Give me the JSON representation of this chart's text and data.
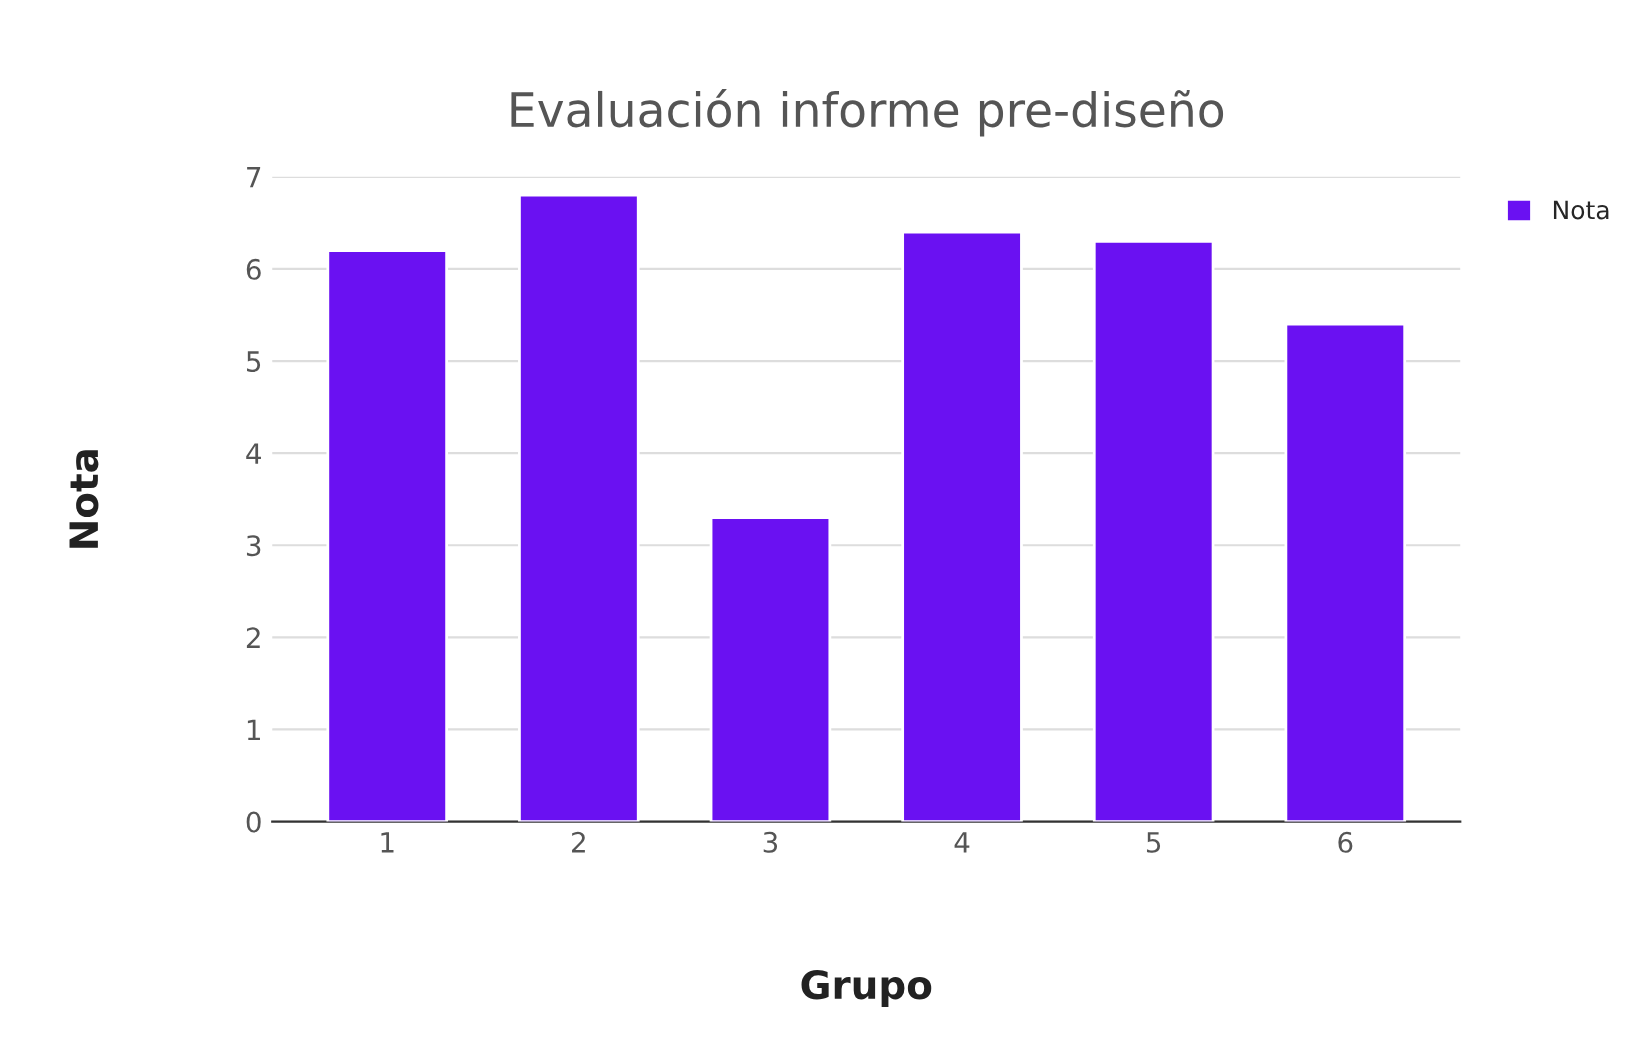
{
  "chart_data": {
    "type": "bar",
    "title": "Evaluación informe pre-diseño",
    "xlabel": "Grupo",
    "ylabel": "Nota",
    "categories": [
      "1",
      "2",
      "3",
      "4",
      "5",
      "6"
    ],
    "series": [
      {
        "name": "Nota",
        "color": "#6a11f2",
        "values": [
          6.2,
          6.8,
          3.3,
          6.4,
          6.3,
          5.4
        ]
      }
    ],
    "ylim": [
      0,
      7
    ],
    "yticks": [
      0,
      1,
      2,
      3,
      4,
      5,
      6,
      7
    ],
    "grid": "y",
    "legend": "top right"
  }
}
